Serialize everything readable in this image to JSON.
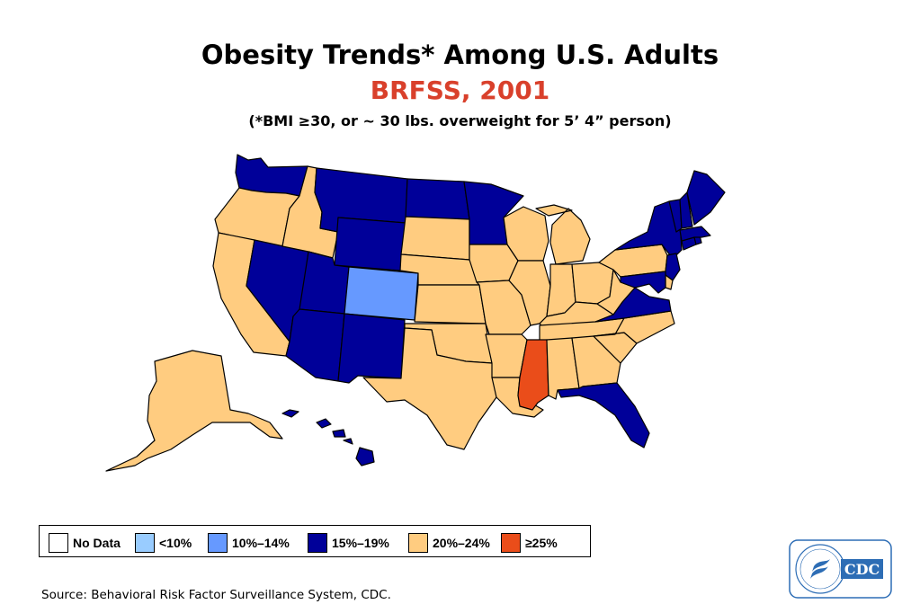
{
  "title": "Obesity Trends* Among U.S. Adults",
  "subtitle": "BRFSS, 2001",
  "note": "(*BMI ≥30, or ~ 30 lbs. overweight for 5’ 4” person)",
  "source": "Source: Behavioral Risk Factor Surveillance System, CDC.",
  "colors": {
    "subtitle": "#d9402b",
    "no_data": "#ffffff",
    "lt10": "#99ccff",
    "c10_14": "#6699ff",
    "c15_19": "#000099",
    "c20_24": "#ffcc80",
    "ge25": "#ea4d1a",
    "border": "#000000"
  },
  "legend": [
    {
      "label": "No Data",
      "key": "no_data"
    },
    {
      "label": "<10%",
      "key": "lt10"
    },
    {
      "label": "10%–14%",
      "key": "c10_14"
    },
    {
      "label": "15%–19%",
      "key": "c15_19"
    },
    {
      "label": "20%–24%",
      "key": "c20_24"
    },
    {
      "label": "≥25%",
      "key": "ge25"
    }
  ],
  "states": {
    "WA": "15-19",
    "OR": "20-24",
    "CA": "20-24",
    "NV": "15-19",
    "ID": "20-24",
    "MT": "15-19",
    "WY": "15-19",
    "UT": "15-19",
    "AZ": "15-19",
    "CO": "10-14",
    "NM": "15-19",
    "ND": "15-19",
    "SD": "20-24",
    "NE": "20-24",
    "KS": "20-24",
    "OK": "20-24",
    "TX": "20-24",
    "MN": "15-19",
    "IA": "20-24",
    "MO": "20-24",
    "AR": "20-24",
    "LA": "20-24",
    "WI": "20-24",
    "IL": "20-24",
    "MI": "20-24",
    "IN": "20-24",
    "OH": "20-24",
    "KY": "20-24",
    "TN": "20-24",
    "MS": ">=25",
    "AL": "20-24",
    "GA": "20-24",
    "FL": "15-19",
    "SC": "20-24",
    "NC": "20-24",
    "VA": "15-19",
    "WV": "20-24",
    "PA": "20-24",
    "NY": "15-19",
    "NJ": "15-19",
    "DE": "20-24",
    "MD": "15-19",
    "CT": "15-19",
    "RI": "15-19",
    "MA": "15-19",
    "VT": "15-19",
    "NH": "15-19",
    "ME": "15-19",
    "AK": "20-24",
    "HI": "15-19"
  },
  "logo_text": "CDC"
}
